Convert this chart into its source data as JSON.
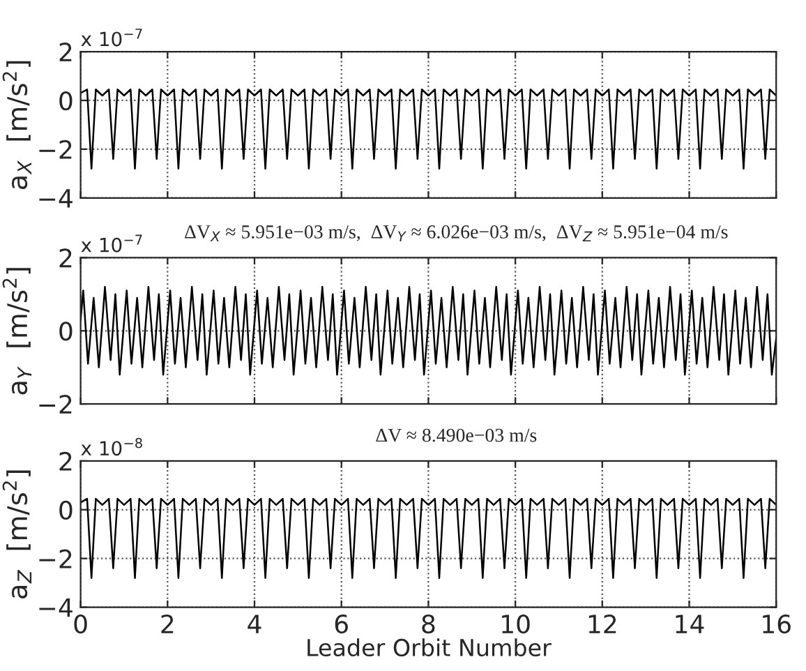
{
  "chart_data": [
    {
      "type": "line",
      "ylabel": "a$_{X}$  [m/s$^{2}$]",
      "annotations": [
        "x 10$^{−7}$"
      ],
      "xlim": [
        0,
        16
      ],
      "xticks": [
        0,
        2,
        4,
        6,
        8,
        10,
        12,
        14,
        16
      ],
      "ylim": [
        -4,
        2
      ],
      "yticks": [
        -4,
        -2,
        0,
        2
      ],
      "grid": true,
      "tick_labels": "y",
      "series": [
        {
          "color": "#000000",
          "x": [
            0,
            0.15,
            0.25,
            0.35,
            0.5,
            0.65,
            0.75,
            0.85,
            1,
            1.15,
            1.25,
            1.35,
            1.5,
            1.65,
            1.75,
            1.85,
            2,
            2.15,
            2.25,
            2.35,
            2.5,
            2.65,
            2.75,
            2.85,
            3,
            3.15,
            3.25,
            3.35,
            3.5,
            3.65,
            3.75,
            3.85,
            4,
            4.15,
            4.25,
            4.35,
            4.5,
            4.65,
            4.75,
            4.85,
            5,
            5.15,
            5.25,
            5.35,
            5.5,
            5.65,
            5.75,
            5.85,
            6,
            6.15,
            6.25,
            6.35,
            6.5,
            6.65,
            6.75,
            6.85,
            7,
            7.15,
            7.25,
            7.35,
            7.5,
            7.65,
            7.75,
            7.85,
            8,
            8.15,
            8.25,
            8.35,
            8.5,
            8.65,
            8.75,
            8.85,
            9,
            9.15,
            9.25,
            9.35,
            9.5,
            9.65,
            9.75,
            9.85,
            10,
            10.15,
            10.25,
            10.35,
            10.5,
            10.65,
            10.75,
            10.85,
            11,
            11.15,
            11.25,
            11.35,
            11.5,
            11.65,
            11.75,
            11.85,
            12,
            12.15,
            12.25,
            12.35,
            12.5,
            12.65,
            12.75,
            12.85,
            13,
            13.15,
            13.25,
            13.35,
            13.5,
            13.65,
            13.75,
            13.85,
            14,
            14.15,
            14.25,
            14.35,
            14.5,
            14.65,
            14.75,
            14.85,
            15,
            15.15,
            15.25,
            15.35,
            15.5,
            15.65,
            15.75,
            15.85,
            16
          ],
          "values": [
            0.3,
            0.45,
            -2.8,
            0.45,
            0.2,
            0.45,
            -2.4,
            0.45,
            0.2,
            0.45,
            -2.8,
            0.45,
            0.2,
            0.45,
            -2.4,
            0.45,
            0.2,
            0.45,
            -2.8,
            0.45,
            0.2,
            0.45,
            -2.4,
            0.45,
            0.2,
            0.45,
            -2.8,
            0.45,
            0.2,
            0.45,
            -2.4,
            0.45,
            0.2,
            0.45,
            -2.8,
            0.45,
            0.2,
            0.45,
            -2.4,
            0.45,
            0.2,
            0.45,
            -2.8,
            0.45,
            0.2,
            0.45,
            -2.4,
            0.45,
            0.2,
            0.45,
            -2.8,
            0.45,
            0.2,
            0.45,
            -2.4,
            0.45,
            0.2,
            0.45,
            -2.8,
            0.45,
            0.2,
            0.45,
            -2.4,
            0.45,
            0.2,
            0.45,
            -2.8,
            0.45,
            0.2,
            0.45,
            -2.4,
            0.45,
            0.2,
            0.45,
            -2.8,
            0.45,
            0.2,
            0.45,
            -2.4,
            0.45,
            0.2,
            0.45,
            -2.8,
            0.45,
            0.2,
            0.45,
            -2.4,
            0.45,
            0.2,
            0.45,
            -2.8,
            0.45,
            0.2,
            0.45,
            -2.4,
            0.45,
            0.2,
            0.45,
            -2.8,
            0.45,
            0.2,
            0.45,
            -2.4,
            0.45,
            0.2,
            0.45,
            -2.8,
            0.45,
            0.2,
            0.45,
            -2.4,
            0.45,
            0.2,
            0.45,
            -2.8,
            0.45,
            0.2,
            0.45,
            -2.4,
            0.45,
            0.2,
            0.45,
            -2.8,
            0.45,
            0.2,
            0.45,
            -2.4,
            0.45,
            0.2
          ]
        }
      ]
    },
    {
      "type": "line",
      "title": "ΔV$_{X}$ ≈ 5.951e−03 m/s,  ΔV$_{Y}$ ≈ 6.026e−03 m/s,  ΔV$_{Z}$ ≈ 5.951e−04 m/s",
      "ylabel": "a$_{Y}$  [m/s$^{2}$]",
      "annotations": [
        "x 10$^{−7}$"
      ],
      "xlim": [
        0,
        16
      ],
      "xticks": [
        0,
        2,
        4,
        6,
        8,
        10,
        12,
        14,
        16
      ],
      "ylim": [
        -2,
        2
      ],
      "yticks": [
        -2,
        0,
        2
      ],
      "grid": true,
      "tick_labels": "y",
      "series": [
        {
          "color": "#000000",
          "x": [
            0,
            0.06,
            0.17,
            0.3,
            0.42,
            0.56,
            0.69,
            0.8,
            0.9,
            1.06,
            1.17,
            1.3,
            1.42,
            1.56,
            1.69,
            1.8,
            1.9,
            2.06,
            2.17,
            2.3,
            2.42,
            2.56,
            2.69,
            2.8,
            2.9,
            3.06,
            3.17,
            3.3,
            3.42,
            3.56,
            3.69,
            3.8,
            3.9,
            4.06,
            4.17,
            4.3,
            4.42,
            4.56,
            4.69,
            4.8,
            4.9,
            5.06,
            5.17,
            5.3,
            5.42,
            5.56,
            5.69,
            5.8,
            5.9,
            6.06,
            6.17,
            6.3,
            6.42,
            6.56,
            6.69,
            6.8,
            6.9,
            7.06,
            7.17,
            7.3,
            7.42,
            7.56,
            7.69,
            7.8,
            7.9,
            8.06,
            8.17,
            8.3,
            8.42,
            8.56,
            8.69,
            8.8,
            8.9,
            9.06,
            9.17,
            9.3,
            9.42,
            9.56,
            9.69,
            9.8,
            9.9,
            10.06,
            10.17,
            10.3,
            10.42,
            10.56,
            10.69,
            10.8,
            10.9,
            11.06,
            11.17,
            11.3,
            11.42,
            11.56,
            11.69,
            11.8,
            11.9,
            12.06,
            12.17,
            12.3,
            12.42,
            12.56,
            12.69,
            12.8,
            12.9,
            13.06,
            13.17,
            13.3,
            13.42,
            13.56,
            13.69,
            13.8,
            13.9,
            14.06,
            14.17,
            14.3,
            14.42,
            14.56,
            14.69,
            14.8,
            14.9,
            15.06,
            15.17,
            15.3,
            15.42,
            15.56,
            15.69,
            15.8,
            15.9,
            16
          ],
          "values": [
            0.3,
            1.1,
            -0.9,
            0.9,
            -1.0,
            1.2,
            -0.8,
            1.0,
            -1.2,
            1.1,
            -0.9,
            0.9,
            -1.0,
            1.2,
            -0.8,
            1.0,
            -1.2,
            1.1,
            -0.9,
            0.9,
            -1.0,
            1.2,
            -0.8,
            1.0,
            -1.2,
            1.1,
            -0.9,
            0.9,
            -1.0,
            1.2,
            -0.8,
            1.0,
            -1.2,
            1.1,
            -0.9,
            0.9,
            -1.0,
            1.2,
            -0.8,
            1.0,
            -1.2,
            1.1,
            -0.9,
            0.9,
            -1.0,
            1.2,
            -0.8,
            1.0,
            -1.2,
            1.1,
            -0.9,
            0.9,
            -1.0,
            1.2,
            -0.8,
            1.0,
            -1.2,
            1.1,
            -0.9,
            0.9,
            -1.0,
            1.2,
            -0.8,
            1.0,
            -1.2,
            1.1,
            -0.9,
            0.9,
            -1.0,
            1.2,
            -0.8,
            1.0,
            -1.2,
            1.1,
            -0.9,
            0.9,
            -1.0,
            1.2,
            -0.8,
            1.0,
            -1.2,
            1.1,
            -0.9,
            0.9,
            -1.0,
            1.2,
            -0.8,
            1.0,
            -1.2,
            1.1,
            -0.9,
            0.9,
            -1.0,
            1.2,
            -0.8,
            1.0,
            -1.2,
            1.1,
            -0.9,
            0.9,
            -1.0,
            1.2,
            -0.8,
            1.0,
            -1.2,
            1.1,
            -0.9,
            0.9,
            -1.0,
            1.2,
            -0.8,
            1.0,
            -1.2,
            1.1,
            -0.9,
            0.9,
            -1.0,
            1.2,
            -0.8,
            1.0,
            -1.2,
            1.1,
            -0.9,
            0.9,
            -1.0,
            1.2,
            -0.8,
            1.0,
            -1.2,
            -0.2
          ]
        }
      ]
    },
    {
      "type": "line",
      "title": "ΔV ≈ 8.490e−03 m/s",
      "xlabel": "Leader Orbit Number",
      "ylabel": "a$_{Z}$  [m/s$^{2}$]",
      "annotations": [
        "x 10$^{−8}$"
      ],
      "xlim": [
        0,
        16
      ],
      "xticks": [
        0,
        2,
        4,
        6,
        8,
        10,
        12,
        14,
        16
      ],
      "ylim": [
        -4,
        2
      ],
      "yticks": [
        -4,
        -2,
        0,
        2
      ],
      "grid": true,
      "series": [
        {
          "color": "#000000",
          "x": [
            0,
            0.15,
            0.25,
            0.35,
            0.5,
            0.65,
            0.75,
            0.85,
            1,
            1.15,
            1.25,
            1.35,
            1.5,
            1.65,
            1.75,
            1.85,
            2,
            2.15,
            2.25,
            2.35,
            2.5,
            2.65,
            2.75,
            2.85,
            3,
            3.15,
            3.25,
            3.35,
            3.5,
            3.65,
            3.75,
            3.85,
            4,
            4.15,
            4.25,
            4.35,
            4.5,
            4.65,
            4.75,
            4.85,
            5,
            5.15,
            5.25,
            5.35,
            5.5,
            5.65,
            5.75,
            5.85,
            6,
            6.15,
            6.25,
            6.35,
            6.5,
            6.65,
            6.75,
            6.85,
            7,
            7.15,
            7.25,
            7.35,
            7.5,
            7.65,
            7.75,
            7.85,
            8,
            8.15,
            8.25,
            8.35,
            8.5,
            8.65,
            8.75,
            8.85,
            9,
            9.15,
            9.25,
            9.35,
            9.5,
            9.65,
            9.75,
            9.85,
            10,
            10.15,
            10.25,
            10.35,
            10.5,
            10.65,
            10.75,
            10.85,
            11,
            11.15,
            11.25,
            11.35,
            11.5,
            11.65,
            11.75,
            11.85,
            12,
            12.15,
            12.25,
            12.35,
            12.5,
            12.65,
            12.75,
            12.85,
            13,
            13.15,
            13.25,
            13.35,
            13.5,
            13.65,
            13.75,
            13.85,
            14,
            14.15,
            14.25,
            14.35,
            14.5,
            14.65,
            14.75,
            14.85,
            15,
            15.15,
            15.25,
            15.35,
            15.5,
            15.65,
            15.75,
            15.85,
            16
          ],
          "values": [
            0.3,
            0.45,
            -2.8,
            0.45,
            0.2,
            0.45,
            -2.4,
            0.45,
            0.2,
            0.45,
            -2.8,
            0.45,
            0.2,
            0.45,
            -2.4,
            0.45,
            0.2,
            0.45,
            -2.8,
            0.45,
            0.2,
            0.45,
            -2.4,
            0.45,
            0.2,
            0.45,
            -2.8,
            0.45,
            0.2,
            0.45,
            -2.4,
            0.45,
            0.2,
            0.45,
            -2.8,
            0.45,
            0.2,
            0.45,
            -2.4,
            0.45,
            0.2,
            0.45,
            -2.8,
            0.45,
            0.2,
            0.45,
            -2.4,
            0.45,
            0.2,
            0.45,
            -2.8,
            0.45,
            0.2,
            0.45,
            -2.4,
            0.45,
            0.2,
            0.45,
            -2.8,
            0.45,
            0.2,
            0.45,
            -2.4,
            0.45,
            0.2,
            0.45,
            -2.8,
            0.45,
            0.2,
            0.45,
            -2.4,
            0.45,
            0.2,
            0.45,
            -2.8,
            0.45,
            0.2,
            0.45,
            -2.4,
            0.45,
            0.2,
            0.45,
            -2.8,
            0.45,
            0.2,
            0.45,
            -2.4,
            0.45,
            0.2,
            0.45,
            -2.8,
            0.45,
            0.2,
            0.45,
            -2.4,
            0.45,
            0.2,
            0.45,
            -2.8,
            0.45,
            0.2,
            0.45,
            -2.4,
            0.45,
            0.2,
            0.45,
            -2.8,
            0.45,
            0.2,
            0.45,
            -2.4,
            0.45,
            0.2,
            0.45,
            -2.8,
            0.45,
            0.2,
            0.45,
            -2.4,
            0.45,
            0.2,
            0.45,
            -2.8,
            0.45,
            0.2,
            0.45,
            -2.4,
            0.45,
            0.2
          ]
        }
      ]
    }
  ]
}
